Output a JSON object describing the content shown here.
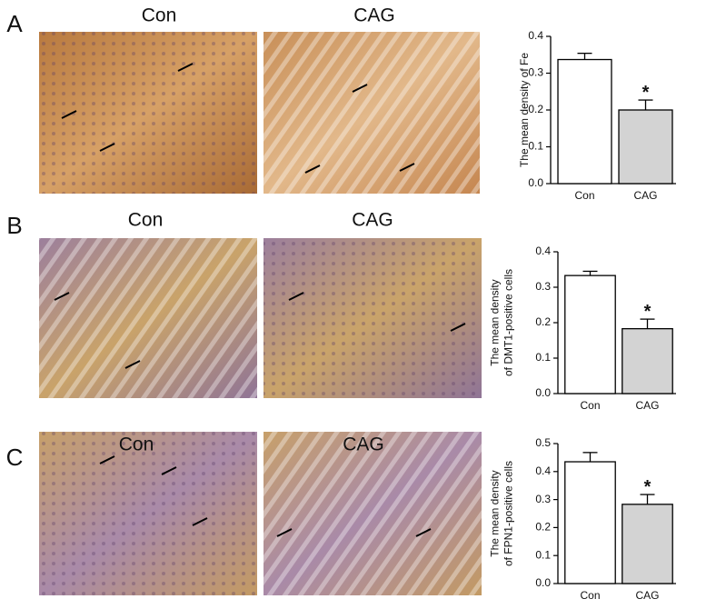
{
  "chart_data": [
    {
      "type": "bar",
      "panel": "A",
      "image_labels": [
        "Con",
        "CAG"
      ],
      "ylabel": [
        "The mean density of Fe"
      ],
      "categories": [
        "Con",
        "CAG"
      ],
      "values": [
        0.337,
        0.2
      ],
      "errors": [
        0.017,
        0.027
      ],
      "colors": [
        "#ffffff",
        "#d3d3d3"
      ],
      "annotation": "*",
      "ylim": [
        0,
        0.4
      ],
      "yticks": [
        {
          "value": 0,
          "label": "0.0"
        },
        0.1,
        0.2,
        0.3,
        0.4
      ]
    },
    {
      "type": "bar",
      "panel": "B",
      "image_labels": [
        "Con",
        "CAG"
      ],
      "ylabel": [
        "The mean density",
        "of DMT1-positive cells"
      ],
      "categories": [
        "Con",
        "CAG"
      ],
      "values": [
        0.333,
        0.183
      ],
      "errors": [
        0.012,
        0.027
      ],
      "colors": [
        "#ffffff",
        "#d3d3d3"
      ],
      "annotation": "*",
      "ylim": [
        0,
        0.4
      ],
      "yticks": [
        {
          "value": 0,
          "label": "0.0"
        },
        0.1,
        0.2,
        0.3,
        0.4
      ]
    },
    {
      "type": "bar",
      "panel": "C",
      "image_labels": [
        "Con",
        "CAG"
      ],
      "ylabel": [
        "The mean density",
        "of  FPN1-positive cells"
      ],
      "categories": [
        "Con",
        "CAG"
      ],
      "values": [
        0.435,
        0.283
      ],
      "errors": [
        0.033,
        0.035
      ],
      "colors": [
        "#ffffff",
        "#d3d3d3"
      ],
      "annotation": "*",
      "ylim": [
        0,
        0.5
      ],
      "yticks": [
        {
          "value": 0,
          "label": "0.0"
        },
        0.1,
        0.2,
        0.3,
        0.4,
        0.5
      ]
    }
  ]
}
